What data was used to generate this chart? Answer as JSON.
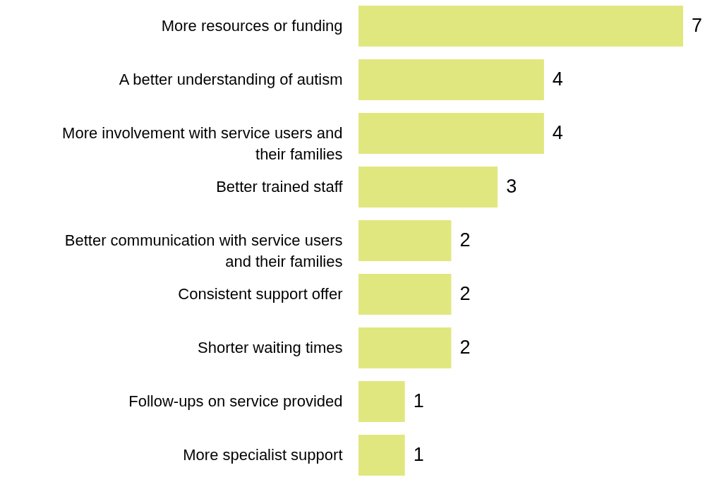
{
  "chart_data": {
    "type": "bar",
    "orientation": "horizontal",
    "categories": [
      "More resources or funding",
      "A better understanding of autism",
      "More involvement with service users and their families",
      "Better trained staff",
      "Better communication with service users and their families",
      "Consistent support offer",
      "Shorter waiting times",
      "Follow-ups  on service provided",
      "More specialist support"
    ],
    "values": [
      7,
      4,
      4,
      3,
      2,
      2,
      2,
      1,
      1
    ],
    "color": "#e1e77f",
    "data_labels": true
  }
}
